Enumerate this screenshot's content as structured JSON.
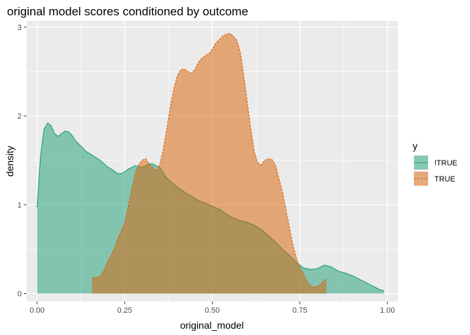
{
  "chart_data": {
    "type": "area",
    "title": "original model scores conditioned by outcome",
    "xlabel": "original_model",
    "ylabel": "density",
    "xlim": [
      -0.03,
      1.03
    ],
    "ylim": [
      -0.09,
      3.07
    ],
    "xticks": [
      {
        "value": 0,
        "label": "0.00"
      },
      {
        "value": 0.25,
        "label": "0.25"
      },
      {
        "value": 0.5,
        "label": "0.50"
      },
      {
        "value": 0.75,
        "label": "0.75"
      },
      {
        "value": 1.0,
        "label": "1.00"
      }
    ],
    "yticks": [
      {
        "value": 0,
        "label": "0"
      },
      {
        "value": 1,
        "label": "1"
      },
      {
        "value": 2,
        "label": "2"
      },
      {
        "value": 3,
        "label": "3"
      }
    ],
    "grid": true,
    "legend": {
      "title": "y",
      "position": "right"
    },
    "series": [
      {
        "name": "!TRUE",
        "fill": "#1b9e77",
        "line": "#1b9e77",
        "linestyle": "solid",
        "x": [
          0.0,
          0.01,
          0.02,
          0.03,
          0.04,
          0.05,
          0.06,
          0.07,
          0.08,
          0.09,
          0.1,
          0.11,
          0.12,
          0.14,
          0.16,
          0.18,
          0.2,
          0.22,
          0.23,
          0.24,
          0.25,
          0.26,
          0.27,
          0.28,
          0.29,
          0.3,
          0.31,
          0.32,
          0.33,
          0.34,
          0.35,
          0.37,
          0.4,
          0.43,
          0.46,
          0.49,
          0.52,
          0.55,
          0.58,
          0.6,
          0.62,
          0.64,
          0.66,
          0.68,
          0.7,
          0.72,
          0.74,
          0.76,
          0.78,
          0.8,
          0.82,
          0.84,
          0.86,
          0.88,
          0.9,
          0.92,
          0.94,
          0.96,
          0.98,
          0.99
        ],
        "y": [
          0.97,
          1.55,
          1.85,
          1.92,
          1.89,
          1.8,
          1.77,
          1.8,
          1.83,
          1.82,
          1.78,
          1.72,
          1.68,
          1.6,
          1.55,
          1.5,
          1.43,
          1.38,
          1.35,
          1.35,
          1.37,
          1.4,
          1.42,
          1.44,
          1.43,
          1.42,
          1.44,
          1.46,
          1.46,
          1.44,
          1.42,
          1.3,
          1.2,
          1.12,
          1.05,
          1.0,
          0.95,
          0.87,
          0.82,
          0.8,
          0.77,
          0.72,
          0.65,
          0.58,
          0.5,
          0.43,
          0.35,
          0.29,
          0.27,
          0.28,
          0.32,
          0.3,
          0.25,
          0.23,
          0.2,
          0.16,
          0.12,
          0.08,
          0.04,
          0.03
        ]
      },
      {
        "name": "TRUE",
        "fill": "#d95f02",
        "line": "#d95f02",
        "linestyle": "dashed",
        "x": [
          0.157,
          0.17,
          0.18,
          0.19,
          0.2,
          0.21,
          0.22,
          0.23,
          0.24,
          0.25,
          0.26,
          0.27,
          0.28,
          0.29,
          0.3,
          0.31,
          0.32,
          0.33,
          0.34,
          0.35,
          0.36,
          0.37,
          0.38,
          0.39,
          0.4,
          0.41,
          0.42,
          0.43,
          0.44,
          0.45,
          0.46,
          0.47,
          0.48,
          0.49,
          0.5,
          0.51,
          0.52,
          0.53,
          0.54,
          0.55,
          0.56,
          0.57,
          0.58,
          0.59,
          0.6,
          0.61,
          0.62,
          0.63,
          0.64,
          0.65,
          0.66,
          0.67,
          0.68,
          0.69,
          0.7,
          0.71,
          0.72,
          0.73,
          0.74,
          0.75,
          0.76,
          0.77,
          0.78,
          0.79,
          0.8,
          0.81,
          0.82,
          0.826
        ],
        "y": [
          0.18,
          0.18,
          0.2,
          0.25,
          0.35,
          0.42,
          0.5,
          0.62,
          0.7,
          0.8,
          0.98,
          1.17,
          1.35,
          1.45,
          1.5,
          1.52,
          1.46,
          1.42,
          1.38,
          1.45,
          1.62,
          1.85,
          2.1,
          2.3,
          2.45,
          2.52,
          2.53,
          2.5,
          2.48,
          2.52,
          2.6,
          2.65,
          2.68,
          2.7,
          2.75,
          2.82,
          2.86,
          2.9,
          2.92,
          2.93,
          2.9,
          2.85,
          2.72,
          2.45,
          2.15,
          1.85,
          1.6,
          1.47,
          1.45,
          1.5,
          1.52,
          1.51,
          1.45,
          1.3,
          1.15,
          0.95,
          0.75,
          0.55,
          0.4,
          0.3,
          0.22,
          0.14,
          0.09,
          0.07,
          0.08,
          0.11,
          0.15,
          0.16
        ]
      }
    ]
  }
}
